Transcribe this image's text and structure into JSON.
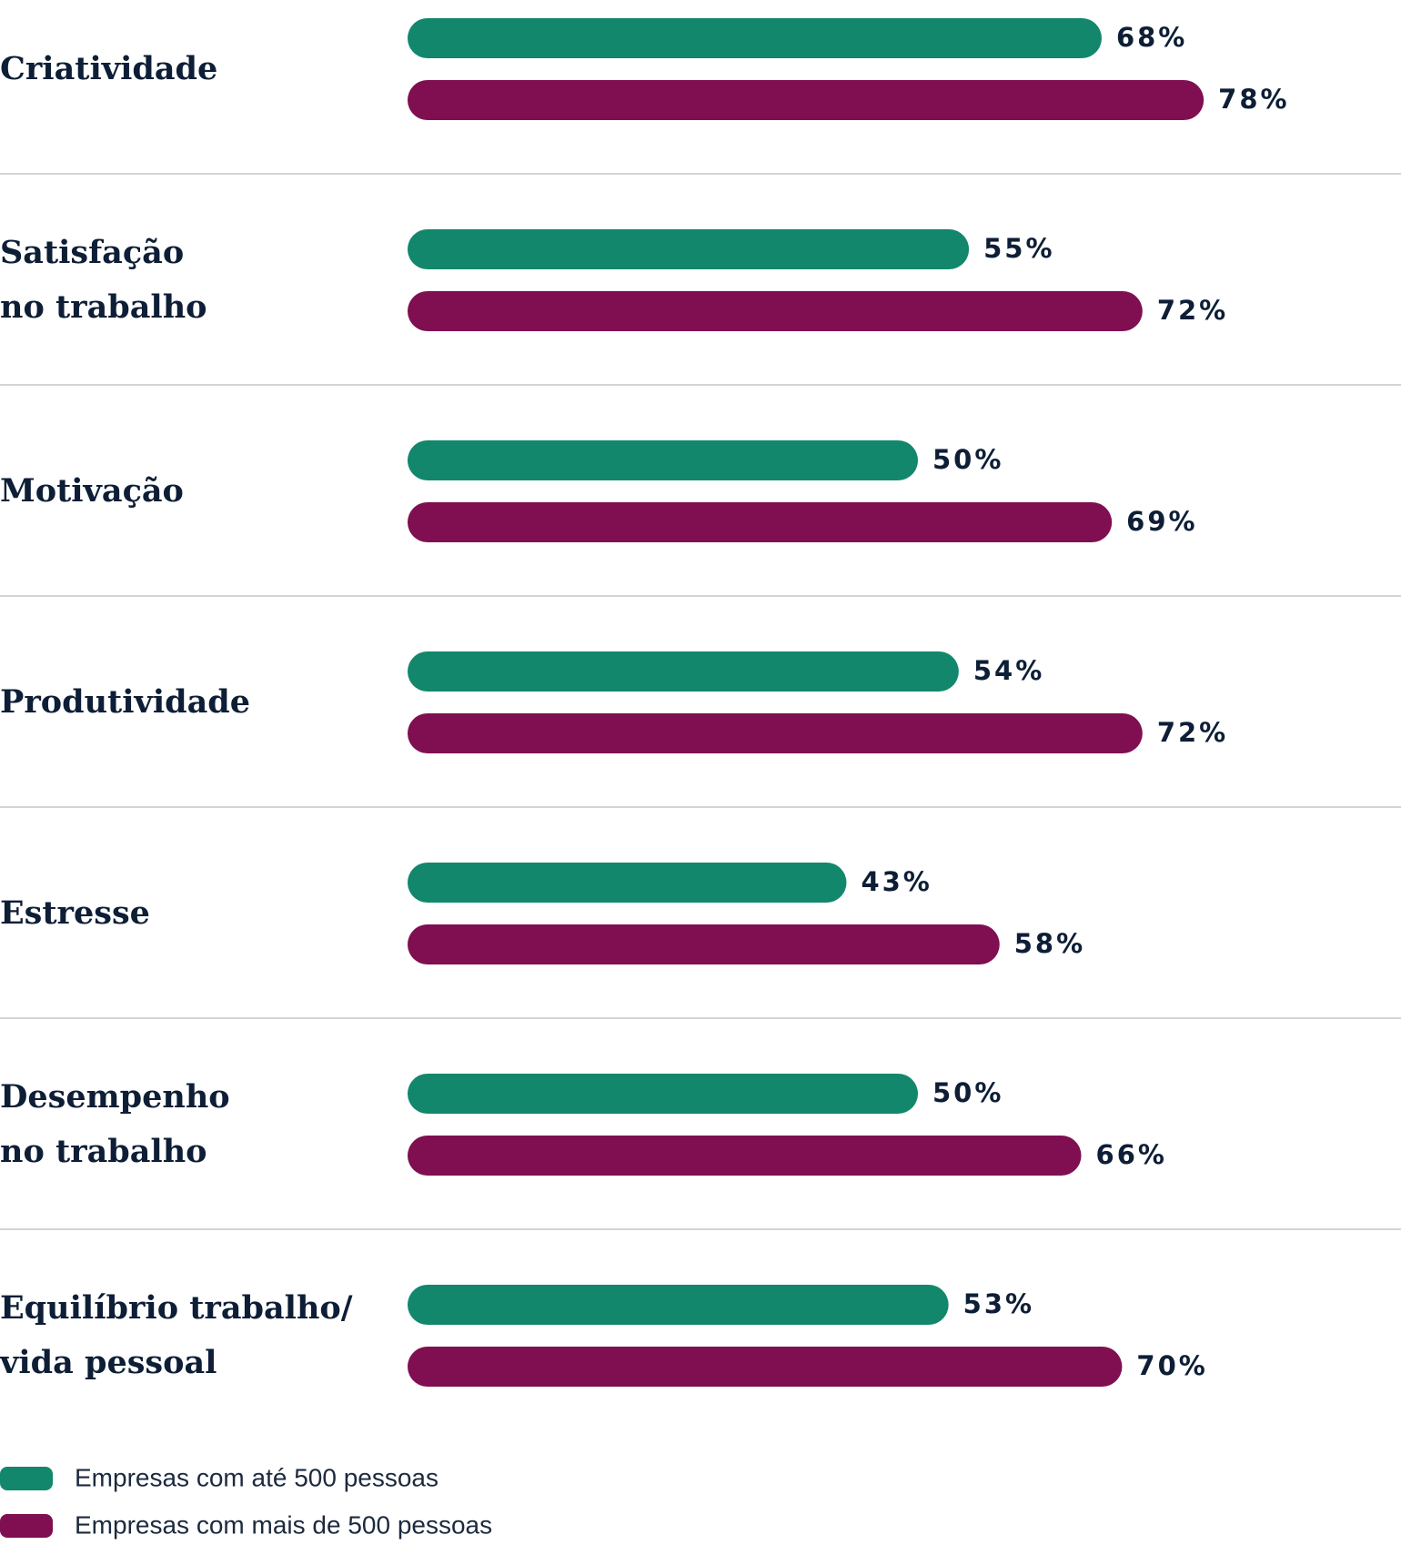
{
  "chart_data": {
    "type": "bar",
    "orientation": "horizontal",
    "categories": [
      "Criatividade",
      "Satisfação\nno trabalho",
      "Motivação",
      "Produtividade",
      "Estresse",
      "Desempenho\nno trabalho",
      "Equilíbrio trabalho/\nvida pessoal"
    ],
    "series": [
      {
        "name": "Empresas com até 500 pessoas",
        "color": "#12876b",
        "values": [
          68,
          55,
          50,
          54,
          43,
          50,
          53
        ],
        "value_labels": [
          "68%",
          "55%",
          "50%",
          "54%",
          "43%",
          "50%",
          "53%"
        ]
      },
      {
        "name": "Empresas com mais de 500 pessoas",
        "color": "#7f0f51",
        "values": [
          78,
          72,
          69,
          72,
          58,
          66,
          70
        ],
        "value_labels": [
          "78%",
          "72%",
          "69%",
          "72%",
          "58%",
          "66%",
          "70%"
        ]
      }
    ],
    "xlim": [
      0,
      100
    ],
    "legend": "bottom-left"
  }
}
